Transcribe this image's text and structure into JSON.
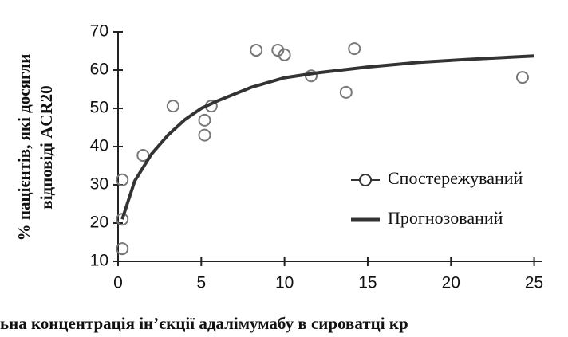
{
  "chart_data": {
    "type": "scatter",
    "ylabel": [
      "% пацієнтів, які досягли",
      "відповіді ACR20"
    ],
    "xlabel": "ьна концентрація ін’єкції адалімумабу в сироватці кр",
    "xlim": [
      0,
      25.5
    ],
    "xticks": [
      0,
      5,
      10,
      15,
      20,
      25
    ],
    "ylim": [
      10,
      70
    ],
    "yticks": [
      10,
      20,
      30,
      40,
      50,
      60,
      70
    ],
    "legend": "right",
    "series": [
      {
        "name": "Спостережуваний",
        "type": "scatter",
        "color": "#777777",
        "x": [
          0.25,
          0.25,
          0.25,
          1.5,
          3.3,
          5.2,
          5.2,
          5.6,
          8.3,
          9.6,
          10.0,
          11.6,
          13.7,
          14.2,
          24.3
        ],
        "values": [
          31.3,
          21,
          13.3,
          37.7,
          50.6,
          46.9,
          43,
          50.6,
          65.2,
          65.2,
          64,
          58.5,
          54.2,
          65.6,
          58.1
        ]
      },
      {
        "name": "Прогнозований",
        "type": "line",
        "color": "#333333",
        "x": [
          0.25,
          1,
          2,
          3,
          4,
          5,
          6,
          8,
          10,
          12,
          15,
          18,
          21,
          25
        ],
        "values": [
          21,
          31,
          38,
          43,
          47,
          50,
          52,
          55.5,
          58,
          59.3,
          60.8,
          62,
          62.8,
          63.7
        ]
      }
    ]
  }
}
